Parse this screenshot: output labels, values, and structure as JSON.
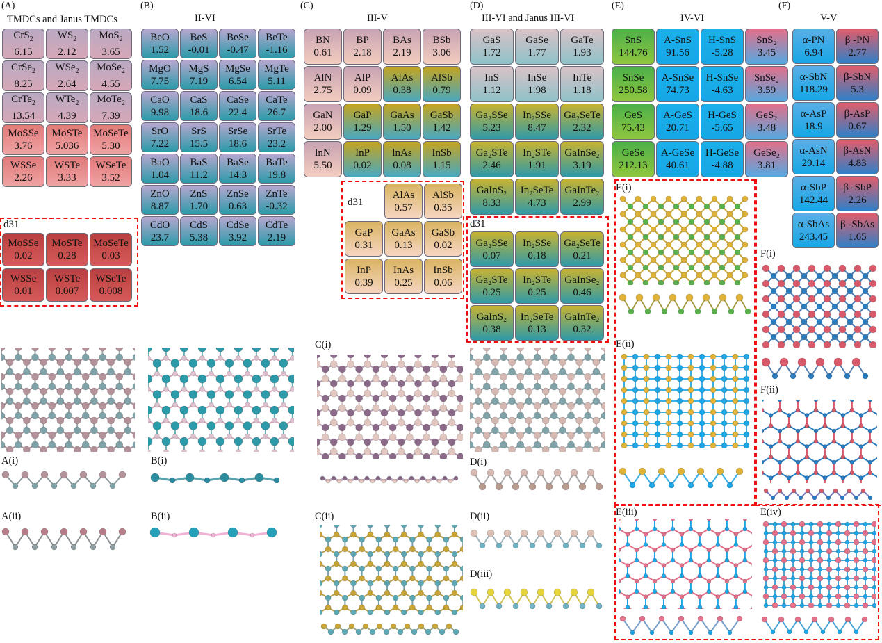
{
  "panels": {
    "A": {
      "letter": "(A)",
      "title": "TMDCs and Janus TMDCs"
    },
    "B": {
      "letter": "(B)",
      "title": "II-VI"
    },
    "C": {
      "letter": "(C)",
      "title": "III-V"
    },
    "D": {
      "letter": "(D)",
      "title": "III-VI and Janus III-VI"
    },
    "E": {
      "letter": "(E)",
      "title": "IV-VI"
    },
    "F": {
      "letter": "(F)",
      "title": "V-V"
    }
  },
  "d31_label": "d31",
  "sublabels": {
    "A_i": "A(i)",
    "A_ii": "A(ii)",
    "B_i": "B(i)",
    "B_ii": "B(ii)",
    "C_i": "C(i)",
    "C_ii": "C(ii)",
    "D_i": "D(i)",
    "D_ii": "D(ii)",
    "D_iii": "D(iii)",
    "E_i": "E(i)",
    "E_ii": "E(ii)",
    "E_iii": "E(iii)",
    "E_iv": "E(iv)",
    "F_i": "F(i)",
    "F_ii": "F(ii)"
  },
  "colors": {
    "tmdc_top": "#b9a9c2",
    "tmdc_bot": "#d6a8b7",
    "janus_top": "#e07a7a",
    "janus_bot": "#f0a3a3",
    "d31_top": "#b94040",
    "d31_bot": "#d65a5a",
    "iivi_top": "#b7a7cf",
    "iivi_bot": "#2a9aa8",
    "iiiv_top": "#c8a3b3",
    "iiiv_bot": "#f3cdbf",
    "iiiv_g_top": "#c4a420",
    "iiiv_g_bot": "#49a8c0",
    "iiiv_d_top": "#d9b462",
    "iiiv_d_bot": "#f6d5c2",
    "iiivi_top": "#d9c2c7",
    "iiivi_bot": "#8ec2c8",
    "iiivi_g_top": "#c7b331",
    "iiivi_g_bot": "#2f9aa8",
    "ivvi_green": "#4cb04a",
    "ivvi_blue": "#16a7e6",
    "ivvi_red": "#e2708a",
    "vv_blue": "#2f80c8",
    "vv_red": "#e05d6a",
    "dash_red": "#e11111"
  },
  "tables": {
    "A": [
      [
        {
          "f": "CrS",
          "s": "2",
          "v": "6.15"
        },
        {
          "f": "WS",
          "s": "2",
          "v": "2.12"
        },
        {
          "f": "MoS",
          "s": "2",
          "v": "3.65"
        }
      ],
      [
        {
          "f": "CrSe",
          "s": "2",
          "v": "8.25"
        },
        {
          "f": "WSe",
          "s": "2",
          "v": "2.64"
        },
        {
          "f": "MoSe",
          "s": "2",
          "v": "4.55"
        }
      ],
      [
        {
          "f": "CrTe",
          "s": "2",
          "v": "13.54"
        },
        {
          "f": "WTe",
          "s": "2",
          "v": "4.39"
        },
        {
          "f": "MoTe",
          "s": "2",
          "v": "7.39"
        }
      ],
      [
        {
          "f": "MoSSe",
          "s": "",
          "v": "3.76"
        },
        {
          "f": "MoSTe",
          "s": "",
          "v": "5.036"
        },
        {
          "f": "MoSeTe",
          "s": "",
          "v": "5.30"
        }
      ],
      [
        {
          "f": "WSSe",
          "s": "",
          "v": "2.26"
        },
        {
          "f": "WSTe",
          "s": "",
          "v": "3.33"
        },
        {
          "f": "WSeTe",
          "s": "",
          "v": "3.52"
        }
      ]
    ],
    "A_d31": [
      [
        {
          "f": "MoSSe",
          "v": "0.02"
        },
        {
          "f": "MoSTe",
          "v": "0.28"
        },
        {
          "f": "MoSeTe",
          "v": "0.03"
        }
      ],
      [
        {
          "f": "WSSe",
          "v": "0.01"
        },
        {
          "f": "WSTe",
          "v": "0.007"
        },
        {
          "f": "WSeTe",
          "v": "0.008"
        }
      ]
    ],
    "B": [
      [
        {
          "f": "BeO",
          "v": "1.52"
        },
        {
          "f": "BeS",
          "v": "-0.01"
        },
        {
          "f": "BeSe",
          "v": "-0.47"
        },
        {
          "f": "BeTe",
          "v": "-1.16"
        }
      ],
      [
        {
          "f": "MgO",
          "v": "7.75"
        },
        {
          "f": "MgS",
          "v": "7.19"
        },
        {
          "f": "MgSe",
          "v": "6.54"
        },
        {
          "f": "MgTe",
          "v": "5.11"
        }
      ],
      [
        {
          "f": "CaO",
          "v": "9.98"
        },
        {
          "f": "CaS",
          "v": "18.6"
        },
        {
          "f": "CaSe",
          "v": "22.4"
        },
        {
          "f": "CaTe",
          "v": "26.7"
        }
      ],
      [
        {
          "f": "SrO",
          "v": "7.22"
        },
        {
          "f": "SrS",
          "v": "15.5"
        },
        {
          "f": "SrSe",
          "v": "18.6"
        },
        {
          "f": "SrTe",
          "v": "23.2"
        }
      ],
      [
        {
          "f": "BaO",
          "v": "1.04"
        },
        {
          "f": "BaS",
          "v": "11.2"
        },
        {
          "f": "BaSe",
          "v": "14.3"
        },
        {
          "f": "BaTe",
          "v": "19.8"
        }
      ],
      [
        {
          "f": "ZnO",
          "v": "8.87"
        },
        {
          "f": "ZnS",
          "v": "1.70"
        },
        {
          "f": "ZnSe",
          "v": "0.63"
        },
        {
          "f": "ZnTe",
          "v": "-0.32"
        }
      ],
      [
        {
          "f": "CdO",
          "v": "23.7"
        },
        {
          "f": "CdS",
          "v": "5.38"
        },
        {
          "f": "CdSe",
          "v": "3.92"
        },
        {
          "f": "CdTe",
          "v": "2.19"
        }
      ]
    ],
    "C": [
      [
        {
          "f": "BN",
          "v": "0.61"
        },
        {
          "f": "BP",
          "v": "2.18"
        },
        {
          "f": "BAs",
          "v": "2.19"
        },
        {
          "f": "BSb",
          "v": "3.06"
        }
      ],
      [
        {
          "f": "AlN",
          "v": "2.75"
        },
        {
          "f": "AlP",
          "v": "0.09"
        },
        {
          "f": "AlAs",
          "v": "0.38"
        },
        {
          "f": "AlSb",
          "v": "0.79"
        }
      ],
      [
        {
          "f": "GaN",
          "v": "2.00"
        },
        {
          "f": "GaP",
          "v": "1.29"
        },
        {
          "f": "GaAs",
          "v": "1.50"
        },
        {
          "f": "GaSb",
          "v": "1.42"
        }
      ],
      [
        {
          "f": "lnN",
          "v": "5.50"
        },
        {
          "f": "InP",
          "v": "0.02"
        },
        {
          "f": "lnAs",
          "v": "0.08"
        },
        {
          "f": "InSb",
          "v": "1.15"
        }
      ]
    ],
    "C_d31": [
      [
        {
          "f": "AlAs",
          "v": "0.57"
        },
        {
          "f": "AlSb",
          "v": "0.35"
        }
      ],
      [
        {
          "f": "GaP",
          "v": "0.31"
        },
        {
          "f": "GaAs",
          "v": "0.13"
        },
        {
          "f": "GaSb",
          "v": "0.02"
        }
      ],
      [
        {
          "f": "InP",
          "v": "0.39"
        },
        {
          "f": "InAs",
          "v": "0.25"
        },
        {
          "f": "InSb",
          "v": "0.06"
        }
      ]
    ],
    "D": [
      [
        {
          "f": "GaS",
          "v": "1.72"
        },
        {
          "f": "GaSe",
          "v": "1.77"
        },
        {
          "f": "GaTe",
          "v": "1.93"
        }
      ],
      [
        {
          "f": "InS",
          "v": "1.12"
        },
        {
          "f": "InSe",
          "v": "1.98"
        },
        {
          "f": "InTe",
          "v": "1.18"
        }
      ],
      [
        {
          "f": "Ga₂SSe",
          "v": "5.23"
        },
        {
          "f": "In₂SSe",
          "v": "8.47"
        },
        {
          "f": "Ga₂SeTe",
          "v": "2.32"
        }
      ],
      [
        {
          "f": "Ga₂STe",
          "v": "2.46"
        },
        {
          "f": "In₂STe",
          "v": "1.91"
        },
        {
          "f": "GaInSe₂",
          "v": "3.19"
        }
      ],
      [
        {
          "f": "GaInS₂",
          "v": "8.33"
        },
        {
          "f": "In₂SeTe",
          "v": "4.73"
        },
        {
          "f": "GaInTe₂",
          "v": "2.99"
        }
      ]
    ],
    "D_d31": [
      [
        {
          "f": "Ga₂SSe",
          "v": "0.07"
        },
        {
          "f": "In₂SSe",
          "v": "0.18"
        },
        {
          "f": "Ga₂SeTe",
          "v": "0.21"
        }
      ],
      [
        {
          "f": "Ga₂STe",
          "v": "0.25"
        },
        {
          "f": "In₂STe",
          "v": "0.25"
        },
        {
          "f": "GaInSe₂",
          "v": "0.46"
        }
      ],
      [
        {
          "f": "GaInS₂",
          "v": "0.38"
        },
        {
          "f": "In₂SeTe",
          "v": "0.13"
        },
        {
          "f": "GaInTe₂",
          "v": "0.32"
        }
      ]
    ],
    "E": [
      [
        {
          "f": "SnS",
          "v": "144.76"
        },
        {
          "f": "A-SnS",
          "v": "91.56"
        },
        {
          "f": "H-SnS",
          "v": "-5.28"
        },
        {
          "f": "SnS₂",
          "v": "3.45"
        }
      ],
      [
        {
          "f": "SnSe",
          "v": "250.58"
        },
        {
          "f": "A-SnSe",
          "v": "74.73"
        },
        {
          "f": "H-SnSe",
          "v": "-4.63"
        },
        {
          "f": "SnSe₂",
          "v": "3.59"
        }
      ],
      [
        {
          "f": "GeS",
          "v": "75.43"
        },
        {
          "f": "A-GeS",
          "v": "20.71"
        },
        {
          "f": "H-GeS",
          "v": "-5.65"
        },
        {
          "f": "GeS₂",
          "v": "3.48"
        }
      ],
      [
        {
          "f": "GeSe",
          "v": "212.13"
        },
        {
          "f": "A-GeSe",
          "v": "40.61"
        },
        {
          "f": "H-GeSe",
          "v": "-4.88"
        },
        {
          "f": "GeSe₂",
          "v": "3.81"
        }
      ]
    ],
    "F": [
      [
        {
          "f": "α-PN",
          "v": "6.94"
        },
        {
          "f": "β -PN",
          "v": "2.77"
        }
      ],
      [
        {
          "f": "α-SbN",
          "v": "118.29"
        },
        {
          "f": "β-SbN",
          "v": "5.3"
        }
      ],
      [
        {
          "f": "α-AsP",
          "v": "18.9"
        },
        {
          "f": "β-AsP",
          "v": "0.67"
        }
      ],
      [
        {
          "f": "α-AsN",
          "v": "29.14"
        },
        {
          "f": "β-AsN",
          "v": "4.83"
        }
      ],
      [
        {
          "f": "α-SbP",
          "v": "142.44"
        },
        {
          "f": "β -SbP",
          "v": "2.26"
        }
      ],
      [
        {
          "f": "α-SbAs",
          "v": "243.45"
        },
        {
          "f": "β -SbAs",
          "v": "1.65"
        }
      ]
    ]
  }
}
